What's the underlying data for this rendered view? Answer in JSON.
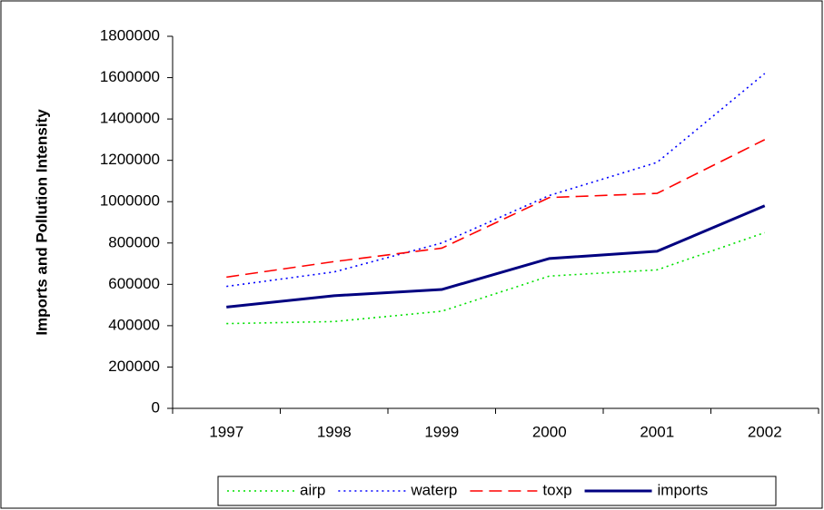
{
  "chart_data": {
    "type": "line",
    "y_label": "Imports and Pollution Intensity",
    "categories": [
      "1997",
      "1998",
      "1999",
      "2000",
      "2001",
      "2002"
    ],
    "series": [
      {
        "name": "airp",
        "color": "#00e000",
        "style": "dotted",
        "values": [
          410000,
          420000,
          470000,
          640000,
          670000,
          850000
        ]
      },
      {
        "name": "waterp",
        "color": "#0000ff",
        "style": "dotted",
        "values": [
          590000,
          660000,
          800000,
          1030000,
          1190000,
          1620000
        ]
      },
      {
        "name": "toxp",
        "color": "#ff0000",
        "style": "dashed",
        "values": [
          635000,
          710000,
          775000,
          1020000,
          1040000,
          1300000
        ]
      },
      {
        "name": "imports",
        "color": "#000080",
        "style": "solid",
        "values": [
          490000,
          545000,
          575000,
          725000,
          760000,
          980000
        ]
      }
    ],
    "ylim": [
      0,
      1800000
    ],
    "yticks": [
      0,
      200000,
      400000,
      600000,
      800000,
      1000000,
      1200000,
      1400000,
      1600000,
      1800000
    ],
    "legend": "bottom"
  }
}
